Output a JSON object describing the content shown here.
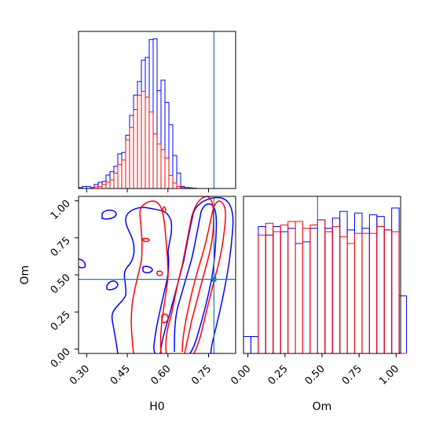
{
  "chart_data": [
    {
      "type": "histogram",
      "panel": "H0 marginal",
      "x_range": [
        0.27,
        0.85
      ],
      "series": [
        {
          "name": "",
          "color": "#0000ff",
          "bins_x0": 0.27,
          "bin_width": 0.0145,
          "values": [
            0.3,
            0.6,
            0.6,
            0.3,
            1.2,
            1.8,
            2.1,
            3.9,
            4.9,
            6.5,
            10.1,
            10.5,
            15.5,
            21.3,
            27.2,
            31.2,
            37.4,
            38.2,
            43.4,
            43.6,
            28.5,
            31.6,
            25.1,
            18.6,
            9.6,
            4.5,
            0.6,
            0.3,
            0.2,
            0.1
          ]
        },
        {
          "name": "",
          "color": "#ff0000",
          "bins_x0": 0.27,
          "bin_width": 0.0145,
          "values": [
            0,
            0,
            0,
            0.3,
            0.5,
            0.6,
            1.2,
            1.9,
            2.5,
            4.5,
            7,
            8.3,
            14.2,
            17.8,
            23,
            27.2,
            28.3,
            26.6,
            22.3,
            15.9,
            13,
            11.3,
            8.9,
            3.8,
            1.6,
            0.6,
            0.3,
            0,
            0,
            0,
            0
          ]
        }
      ],
      "truth_line": 0.77,
      "xticks": [
        "0.30",
        "0.45",
        "0.60",
        "0.75"
      ]
    },
    {
      "type": "contour",
      "panel": "H0 vs Om joint",
      "xlabel": "H0",
      "ylabel": "Om",
      "x_range": [
        0.27,
        0.85
      ],
      "y_range": [
        -0.03,
        1.03
      ],
      "xticks": [
        "0.30",
        "0.45",
        "0.60",
        "0.75"
      ],
      "yticks": [
        "0.00",
        "0.25",
        "0.50",
        "0.75",
        "1.00"
      ],
      "truth_point": {
        "x": 0.77,
        "y": 0.47
      },
      "series": [
        {
          "name": "",
          "color": "#0000ff"
        },
        {
          "name": "",
          "color": "#ff0000"
        }
      ]
    },
    {
      "type": "histogram",
      "panel": "Om marginal",
      "xlabel": "Om",
      "x_range": [
        -0.03,
        1.03
      ],
      "series": [
        {
          "name": "",
          "color": "#0000ff",
          "bins_x0": -0.03,
          "bin_width": 0.05,
          "values": [
            0.1,
            0.1,
            0.75,
            0.7,
            0.75,
            0.72,
            0.74,
            0.65,
            0.66,
            0.74,
            0.79,
            0.74,
            0.8,
            0.84,
            0.73,
            0.83,
            0.74,
            0.82,
            0.81,
            0.73,
            0.86,
            0.34
          ]
        },
        {
          "name": "",
          "color": "#ff0000",
          "bins_x0": -0.03,
          "bin_width": 0.05,
          "values": [
            0.0,
            0.0,
            0.7,
            0.77,
            0.72,
            0.76,
            0.78,
            0.78,
            0.74,
            0.76,
            0.79,
            0.72,
            0.75,
            0.69,
            0.65,
            0.71,
            0.71,
            0.71,
            0.75,
            0.73,
            0.72,
            0.0
          ]
        }
      ],
      "truth_line": 0.47,
      "xticks": [
        "0.00",
        "0.25",
        "0.50",
        "0.75",
        "1.00"
      ]
    }
  ]
}
